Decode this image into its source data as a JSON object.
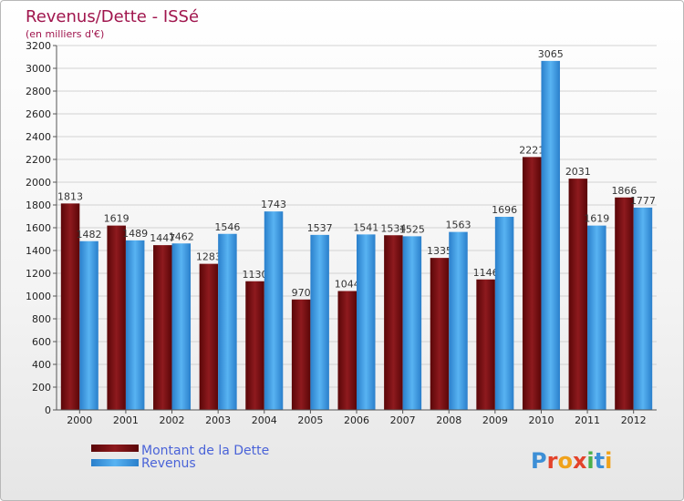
{
  "chart_data": {
    "type": "bar",
    "title": "Revenus/Dette - ISSé",
    "subtitle": "(en milliers d'€)",
    "categories": [
      "2000",
      "2001",
      "2002",
      "2003",
      "2004",
      "2005",
      "2006",
      "2007",
      "2008",
      "2009",
      "2010",
      "2011",
      "2012"
    ],
    "series": [
      {
        "name": "Montant de la Dette",
        "color": "#7a0f12",
        "values": [
          1813,
          1619,
          1447,
          1283,
          1130,
          970,
          1044,
          1534,
          1335,
          1146,
          2221,
          2031,
          1866
        ],
        "labels": [
          "1813",
          "1619",
          "1447",
          "1283",
          "1130",
          "970",
          "1044",
          "1534",
          "1335",
          "1146",
          "2221",
          "2031",
          "1866"
        ]
      },
      {
        "name": "Revenus",
        "color": "#3d9be6",
        "values": [
          1482,
          1489,
          1462,
          1546,
          1743,
          1537,
          1541,
          1525,
          1563,
          1696,
          3065,
          1619,
          1777
        ],
        "labels": [
          "1482",
          "1489",
          "1462",
          "1546",
          "1743",
          "1537",
          "1541",
          "1525",
          "1563",
          "1696",
          "3065",
          "1619",
          "1777"
        ]
      }
    ],
    "ylim": [
      0,
      3200
    ],
    "yticks": [
      "0",
      "200",
      "400",
      "600",
      "800",
      "1000",
      "1200",
      "1400",
      "1600",
      "1800",
      "2000",
      "2200",
      "2400",
      "2600",
      "2800",
      "3000",
      "3200"
    ],
    "grid": true,
    "legend": "bottom-left"
  },
  "logo": {
    "text": "Proxiti"
  }
}
